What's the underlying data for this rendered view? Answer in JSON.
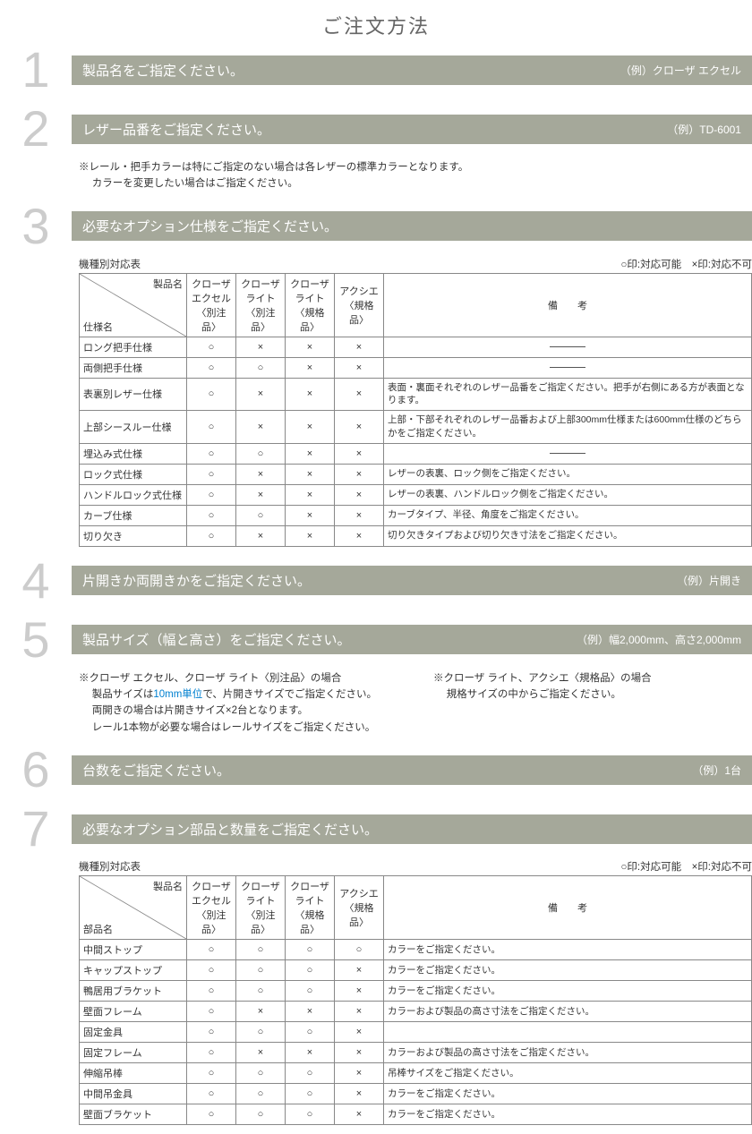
{
  "page_title": "ご注文方法",
  "legend": {
    "ok": "○印:対応可能",
    "ng": "×印:対応不可"
  },
  "diag": {
    "top": "製品名",
    "bot_spec": "仕様名",
    "bot_part": "部品名"
  },
  "products": [
    {
      "l1": "クローザ",
      "l2": "エクセル",
      "l3": "〈別注品〉"
    },
    {
      "l1": "クローザ",
      "l2": "ライト",
      "l3": "〈別注品〉"
    },
    {
      "l1": "クローザ",
      "l2": "ライト",
      "l3": "〈規格品〉"
    },
    {
      "l1": "アクシエ",
      "l2": "",
      "l3": "〈規格品〉"
    }
  ],
  "remark_header": "備　　考",
  "steps": [
    {
      "num": "1",
      "title": "製品名をご指定ください。",
      "example": "（例）クローザ エクセル"
    },
    {
      "num": "2",
      "title": "レザー品番をご指定ください。",
      "example": "（例）TD-6001",
      "note": "※レール・把手カラーは特にご指定のない場合は各レザーの標準カラーとなります。\n　 カラーを変更したい場合はご指定ください。"
    },
    {
      "num": "3",
      "title": "必要なオプション仕様をご指定ください。",
      "example": "",
      "table_caption": "機種別対応表",
      "rows": [
        {
          "name": "ロング把手仕様",
          "v": [
            "○",
            "×",
            "×",
            "×"
          ],
          "remark": "—"
        },
        {
          "name": "両側把手仕様",
          "v": [
            "○",
            "○",
            "×",
            "×"
          ],
          "remark": "—"
        },
        {
          "name": "表裏別レザー仕様",
          "v": [
            "○",
            "×",
            "×",
            "×"
          ],
          "remark": "表面・裏面それぞれのレザー品番をご指定ください。把手が右側にある方が表面となります。"
        },
        {
          "name": "上部シースルー仕様",
          "v": [
            "○",
            "×",
            "×",
            "×"
          ],
          "remark": "上部・下部それぞれのレザー品番および上部300mm仕様または600mm仕様のどちらかをご指定ください。"
        },
        {
          "name": "埋込み式仕様",
          "v": [
            "○",
            "○",
            "×",
            "×"
          ],
          "remark": "—"
        },
        {
          "name": "ロック式仕様",
          "v": [
            "○",
            "×",
            "×",
            "×"
          ],
          "remark": "レザーの表裏、ロック側をご指定ください。"
        },
        {
          "name": "ハンドルロック式仕様",
          "v": [
            "○",
            "×",
            "×",
            "×"
          ],
          "remark": "レザーの表裏、ハンドルロック側をご指定ください。"
        },
        {
          "name": "カーブ仕様",
          "v": [
            "○",
            "○",
            "×",
            "×"
          ],
          "remark": "カーブタイプ、半径、角度をご指定ください。"
        },
        {
          "name": "切り欠き",
          "v": [
            "○",
            "×",
            "×",
            "×"
          ],
          "remark": "切り欠きタイプおよび切り欠き寸法をご指定ください。"
        }
      ]
    },
    {
      "num": "4",
      "title": "片開きか両開きかをご指定ください。",
      "example": "（例）片開き"
    },
    {
      "num": "5",
      "title": "製品サイズ（幅と高さ）をご指定ください。",
      "example": "（例）幅2,000mm、高さ2,000mm",
      "col_left_1": "※クローザ エクセル、クローザ ライト〈別注品〉の場合",
      "col_left_2a": "　 製品サイズは",
      "col_left_2b": "10mm単位",
      "col_left_2c": "で、片開きサイズでご指定ください。",
      "col_left_3": "　 両開きの場合は片開きサイズ×2台となります。",
      "col_left_4": "　 レール1本物が必要な場合はレールサイズをご指定ください。",
      "col_right_1": "※クローザ ライト、アクシエ〈規格品〉の場合",
      "col_right_2": "　 規格サイズの中からご指定ください。"
    },
    {
      "num": "6",
      "title": "台数をご指定ください。",
      "example": "（例）1台"
    },
    {
      "num": "7",
      "title": "必要なオプション部品と数量をご指定ください。",
      "example": "",
      "table_caption": "機種別対応表",
      "rows": [
        {
          "name": "中間ストップ",
          "v": [
            "○",
            "○",
            "○",
            "○"
          ],
          "remark": "カラーをご指定ください。"
        },
        {
          "name": "キャップストップ",
          "v": [
            "○",
            "○",
            "○",
            "×"
          ],
          "remark": "カラーをご指定ください。"
        },
        {
          "name": "鴨居用ブラケット",
          "v": [
            "○",
            "○",
            "○",
            "×"
          ],
          "remark": "カラーをご指定ください。"
        },
        {
          "name": "壁面フレーム",
          "v": [
            "○",
            "×",
            "×",
            "×"
          ],
          "remark": "カラーおよび製品の高さ寸法をご指定ください。"
        },
        {
          "name": "固定金具",
          "v": [
            "○",
            "○",
            "○",
            "×"
          ],
          "remark": ""
        },
        {
          "name": "固定フレーム",
          "v": [
            "○",
            "×",
            "×",
            "×"
          ],
          "remark": "カラーおよび製品の高さ寸法をご指定ください。"
        },
        {
          "name": "伸縮吊棒",
          "v": [
            "○",
            "○",
            "○",
            "×"
          ],
          "remark": "吊棒サイズをご指定ください。"
        },
        {
          "name": "中間吊金具",
          "v": [
            "○",
            "○",
            "○",
            "×"
          ],
          "remark": "カラーをご指定ください。"
        },
        {
          "name": "壁面ブラケット",
          "v": [
            "○",
            "○",
            "○",
            "×"
          ],
          "remark": "カラーをご指定ください。"
        }
      ]
    }
  ]
}
